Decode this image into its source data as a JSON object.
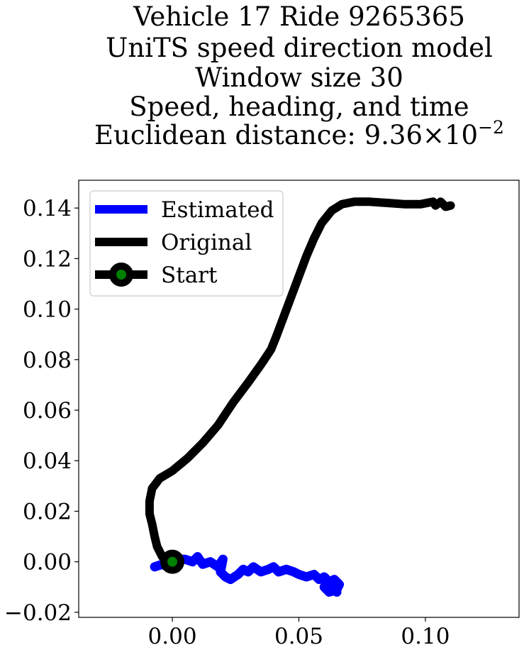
{
  "chart_data": {
    "type": "line",
    "title_lines": [
      "Vehicle 17 Ride 9265365",
      "UniTS speed direction model",
      "Window size 30",
      "Speed, heading, and time",
      "Euclidean distance: 9.36×10⁻²"
    ],
    "title_parts": {
      "distance_prefix": "Euclidean distance: 9.36",
      "times": "×",
      "base": "10",
      "exponent": "−2"
    },
    "xlabel": "",
    "ylabel": "",
    "xlim": [
      -0.037,
      0.137
    ],
    "ylim": [
      -0.022,
      0.151
    ],
    "x_ticks": [
      0.0,
      0.05,
      0.1
    ],
    "x_tick_labels": [
      "0.00",
      "0.05",
      "0.10"
    ],
    "y_ticks": [
      -0.02,
      0.0,
      0.02,
      0.04,
      0.06,
      0.08,
      0.1,
      0.12,
      0.14
    ],
    "y_tick_labels": [
      "−0.02",
      "0.00",
      "0.02",
      "0.04",
      "0.06",
      "0.08",
      "0.10",
      "0.12",
      "0.14"
    ],
    "grid": false,
    "legend_position": "upper-left",
    "series": [
      {
        "name": "Estimated",
        "color": "#0000ff",
        "x": [
          -0.007,
          -0.004,
          -0.002,
          0.0,
          0.003,
          0.005,
          0.008,
          0.01,
          0.012,
          0.015,
          0.018,
          0.02,
          0.019,
          0.021,
          0.023,
          0.026,
          0.028,
          0.03,
          0.032,
          0.035,
          0.038,
          0.04,
          0.042,
          0.045,
          0.048,
          0.05,
          0.053,
          0.056,
          0.058,
          0.06,
          0.062,
          0.064,
          0.066,
          0.065,
          0.062,
          0.06,
          0.063,
          0.065
        ],
        "y": [
          -0.002,
          -0.001,
          -0.002,
          0.0,
          0.001,
          0.001,
          0.0,
          0.002,
          -0.001,
          0.0,
          -0.002,
          0.001,
          -0.004,
          -0.006,
          -0.007,
          -0.005,
          -0.003,
          -0.004,
          -0.002,
          -0.004,
          -0.003,
          -0.002,
          -0.004,
          -0.003,
          -0.004,
          -0.005,
          -0.006,
          -0.005,
          -0.007,
          -0.006,
          -0.008,
          -0.007,
          -0.009,
          -0.011,
          -0.012,
          -0.01,
          -0.009,
          -0.012
        ]
      },
      {
        "name": "Original",
        "color": "#000000",
        "x": [
          0.0,
          -0.004,
          -0.006,
          -0.007,
          -0.008,
          -0.009,
          -0.009,
          -0.008,
          -0.005,
          0.0,
          0.006,
          0.012,
          0.018,
          0.024,
          0.03,
          0.035,
          0.039,
          0.041,
          0.044,
          0.047,
          0.05,
          0.053,
          0.056,
          0.059,
          0.063,
          0.067,
          0.072,
          0.078,
          0.085,
          0.092,
          0.098,
          0.103,
          0.104,
          0.106,
          0.108,
          0.11
        ],
        "y": [
          0.0,
          0.002,
          0.006,
          0.01,
          0.015,
          0.019,
          0.024,
          0.029,
          0.033,
          0.036,
          0.041,
          0.047,
          0.054,
          0.063,
          0.071,
          0.078,
          0.084,
          0.089,
          0.097,
          0.105,
          0.113,
          0.121,
          0.128,
          0.134,
          0.139,
          0.1415,
          0.1425,
          0.1425,
          0.142,
          0.1415,
          0.1415,
          0.1425,
          0.141,
          0.1425,
          0.1405,
          0.141
        ]
      }
    ],
    "start_marker": {
      "name": "Start",
      "x": 0.0,
      "y": 0.0,
      "edge_color": "#000000",
      "face_color": "#008000"
    }
  }
}
